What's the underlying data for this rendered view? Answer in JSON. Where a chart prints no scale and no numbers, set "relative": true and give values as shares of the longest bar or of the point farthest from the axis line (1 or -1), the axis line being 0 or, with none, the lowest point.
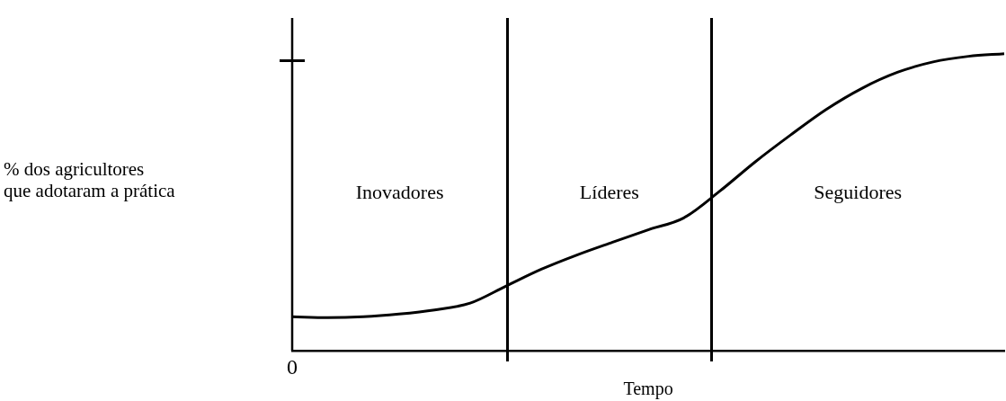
{
  "chart_data": {
    "type": "line",
    "relative": true,
    "xlabel": "Tempo",
    "categories": [
      null,
      null,
      null,
      null,
      null,
      null,
      null,
      null,
      null,
      null,
      null,
      null,
      null,
      null,
      null,
      null,
      null,
      null,
      null,
      null,
      null
    ],
    "series": [
      {
        "color": "#000000",
        "values": [
          0.114,
          0.111,
          0.114,
          0.123,
          0.137,
          0.16,
          0.217,
          0.274,
          0.322,
          0.365,
          0.407,
          0.447,
          0.536,
          0.635,
          0.726,
          0.812,
          0.883,
          0.937,
          0.972,
          0.991,
          1
        ]
      }
    ],
    "annotations": [
      "Inovadores",
      "Líderes",
      "Seguidores",
      "0",
      "% dos agricultores\nque adotaram a prática"
    ],
    "legend": false,
    "marker": "none",
    "line_style": "solid"
  }
}
